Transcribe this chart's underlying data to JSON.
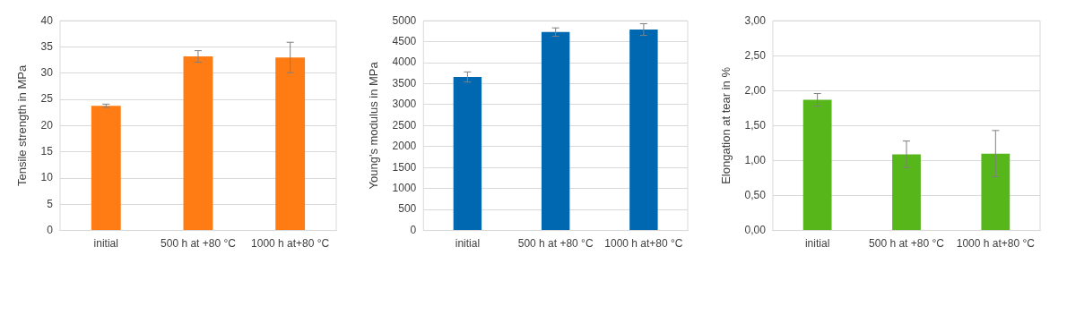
{
  "chart_data": [
    {
      "type": "bar",
      "ylabel": "Tensile strength in MPa",
      "categories": [
        "initial",
        "500 h at +80 °C",
        "1000 h at+80 °C"
      ],
      "values": [
        23.8,
        33.2,
        33.0
      ],
      "errors": [
        0.3,
        1.1,
        2.9
      ],
      "color": "#ff7c14",
      "ylim": [
        0,
        40
      ],
      "yticks": [
        0,
        5,
        10,
        15,
        20,
        25,
        30,
        35,
        40
      ],
      "grid": "y"
    },
    {
      "type": "bar",
      "ylabel": "Young's modulus in MPa",
      "categories": [
        "initial",
        "500 h at +80 °C",
        "1000 h at+80 °C"
      ],
      "values": [
        3660,
        4730,
        4790
      ],
      "errors": [
        120,
        100,
        140
      ],
      "color": "#0068b0",
      "ylim": [
        0,
        5000
      ],
      "yticks": [
        0,
        500,
        1000,
        1500,
        2000,
        2500,
        3000,
        3500,
        4000,
        4500,
        5000
      ],
      "grid": "y"
    },
    {
      "type": "bar",
      "ylabel": "Elongation at tear in %",
      "categories": [
        "initial",
        "500 h at +80 °C",
        "1000 h at+80 °C"
      ],
      "values": [
        1.87,
        1.09,
        1.1
      ],
      "errors": [
        0.09,
        0.19,
        0.33
      ],
      "color": "#56b61a",
      "ylim": [
        0,
        3
      ],
      "yticks": [
        {
          "value": 0,
          "label": "0,00"
        },
        {
          "value": 0.5,
          "label": "0,50"
        },
        {
          "value": 1,
          "label": "1,00"
        },
        {
          "value": 1.5,
          "label": "1,50"
        },
        {
          "value": 2,
          "label": "2,00"
        },
        {
          "value": 2.5,
          "label": "2,50"
        },
        {
          "value": 3,
          "label": "3,00"
        }
      ],
      "grid": "y"
    }
  ]
}
